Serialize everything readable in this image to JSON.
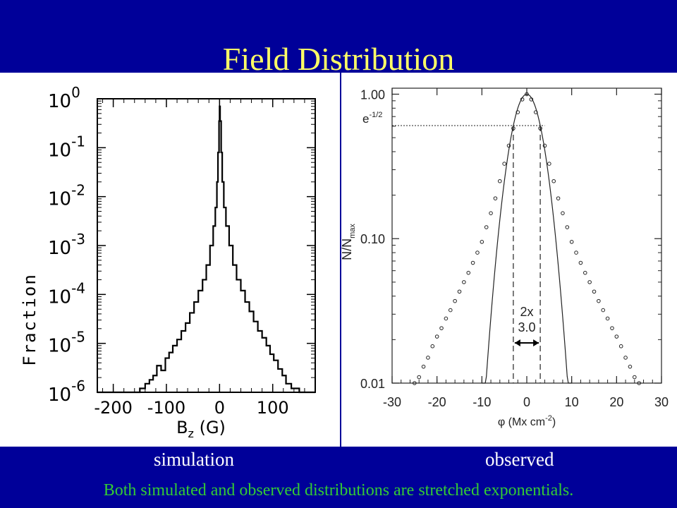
{
  "slide": {
    "title": "Field Distribution",
    "label_left": "simulation",
    "label_right": "observed",
    "caption": "Both simulated and observed distributions are stretched exponentials.",
    "colors": {
      "background": "#000099",
      "title": "#ffff66",
      "caption": "#33cc33",
      "labels": "#ffffff"
    }
  },
  "chart_data": [
    {
      "type": "line",
      "panel": "simulation",
      "xlabel": "B",
      "xlabel_sub": "z",
      "xlabel_suffix": "(G)",
      "ylabel": "Fraction",
      "xlim": [
        -230,
        180
      ],
      "ylog": true,
      "ylim": [
        1e-06,
        1
      ],
      "xticks": [
        -200,
        -100,
        0,
        100
      ],
      "yticks": [
        {
          "value": 1,
          "base": "10",
          "exp": "0"
        },
        {
          "value": 0.1,
          "base": "10",
          "exp": "-1"
        },
        {
          "value": 0.01,
          "base": "10",
          "exp": "-2"
        },
        {
          "value": 0.001,
          "base": "10",
          "exp": "-3"
        },
        {
          "value": 0.0001,
          "base": "10",
          "exp": "-4"
        },
        {
          "value": 1e-05,
          "base": "10",
          "exp": "-5"
        },
        {
          "value": 1e-06,
          "base": "10",
          "exp": "-6"
        }
      ],
      "series": [
        {
          "style": "step",
          "x": [
            -230,
            -180,
            -170,
            -160,
            -150,
            -140,
            -132,
            -125,
            -118,
            -110,
            -102,
            -95,
            -88,
            -80,
            -72,
            -64,
            -56,
            -48,
            -40,
            -32,
            -25,
            -18,
            -12,
            -8,
            -5,
            -3,
            -1,
            0,
            1,
            3,
            5,
            8,
            12,
            18,
            25,
            32,
            40,
            48,
            56,
            64,
            72,
            80,
            88,
            95,
            102,
            110,
            118,
            125,
            135,
            150,
            160,
            180
          ],
          "y": [
            8e-07,
            8e-07,
            9e-07,
            1e-06,
            1.2e-06,
            1.5e-06,
            1.8e-06,
            2.2e-06,
            3.5e-06,
            2.8e-06,
            5e-06,
            6.5e-06,
            9e-06,
            1.2e-05,
            1.8e-05,
            2.6e-05,
            4.2e-05,
            7e-05,
            0.00012,
            0.0002,
            0.0004,
            0.001,
            0.0025,
            0.006,
            0.02,
            0.08,
            0.35,
            0.7,
            0.35,
            0.08,
            0.02,
            0.006,
            0.0025,
            0.001,
            0.0004,
            0.0002,
            0.00012,
            7e-05,
            4.5e-05,
            2.8e-05,
            1.8e-05,
            1.3e-05,
            9e-06,
            6e-06,
            4.5e-06,
            3e-06,
            2.2e-06,
            1.5e-06,
            1.2e-06,
            9e-07,
            8e-07,
            8e-07
          ]
        }
      ]
    },
    {
      "type": "scatter",
      "panel": "observed",
      "xlabel": "φ (Mx cm",
      "xlabel_sup": "-2",
      "xlabel_close": ")",
      "ylabel": "N/N",
      "ylabel_sub": "max",
      "xlim": [
        -30,
        30
      ],
      "ylog": true,
      "ylim": [
        0.01,
        1.1
      ],
      "xticks": [
        -30,
        -20,
        -10,
        0,
        10,
        20,
        30
      ],
      "yticks": [
        {
          "value": 1.0,
          "label": "1.00"
        },
        {
          "value": 0.1,
          "label": "0.10"
        },
        {
          "value": 0.01,
          "label": "0.01"
        }
      ],
      "annotations": {
        "e_half_label": "e",
        "e_half_sup": "-1/2",
        "e_half_value": 0.6065,
        "width_label_1": "2x",
        "width_label_2": "3.0",
        "halfwidth": 3.0
      },
      "series": [
        {
          "style": "points",
          "x": [
            -25,
            -24,
            -23,
            -22,
            -21,
            -20,
            -19,
            -18,
            -17,
            -16,
            -15,
            -14,
            -13,
            -12,
            -11,
            -10,
            -9,
            -8,
            -7,
            -6,
            -5,
            -4,
            -3,
            -2,
            -1,
            0,
            1,
            2,
            3,
            4,
            5,
            6,
            7,
            8,
            9,
            10,
            11,
            12,
            13,
            14,
            15,
            16,
            17,
            18,
            19,
            20,
            21,
            22,
            23,
            24,
            25
          ],
          "y": [
            0.01,
            0.011,
            0.013,
            0.015,
            0.018,
            0.021,
            0.024,
            0.028,
            0.032,
            0.037,
            0.043,
            0.05,
            0.058,
            0.068,
            0.08,
            0.095,
            0.12,
            0.15,
            0.19,
            0.25,
            0.33,
            0.44,
            0.58,
            0.75,
            0.92,
            1.0,
            0.92,
            0.75,
            0.58,
            0.44,
            0.33,
            0.25,
            0.19,
            0.15,
            0.12,
            0.095,
            0.08,
            0.068,
            0.058,
            0.05,
            0.043,
            0.037,
            0.032,
            0.028,
            0.024,
            0.021,
            0.018,
            0.015,
            0.013,
            0.011,
            0.01
          ]
        },
        {
          "style": "gaussian-line",
          "sigma": 3.0,
          "x_range": [
            -10,
            10
          ]
        }
      ]
    }
  ]
}
